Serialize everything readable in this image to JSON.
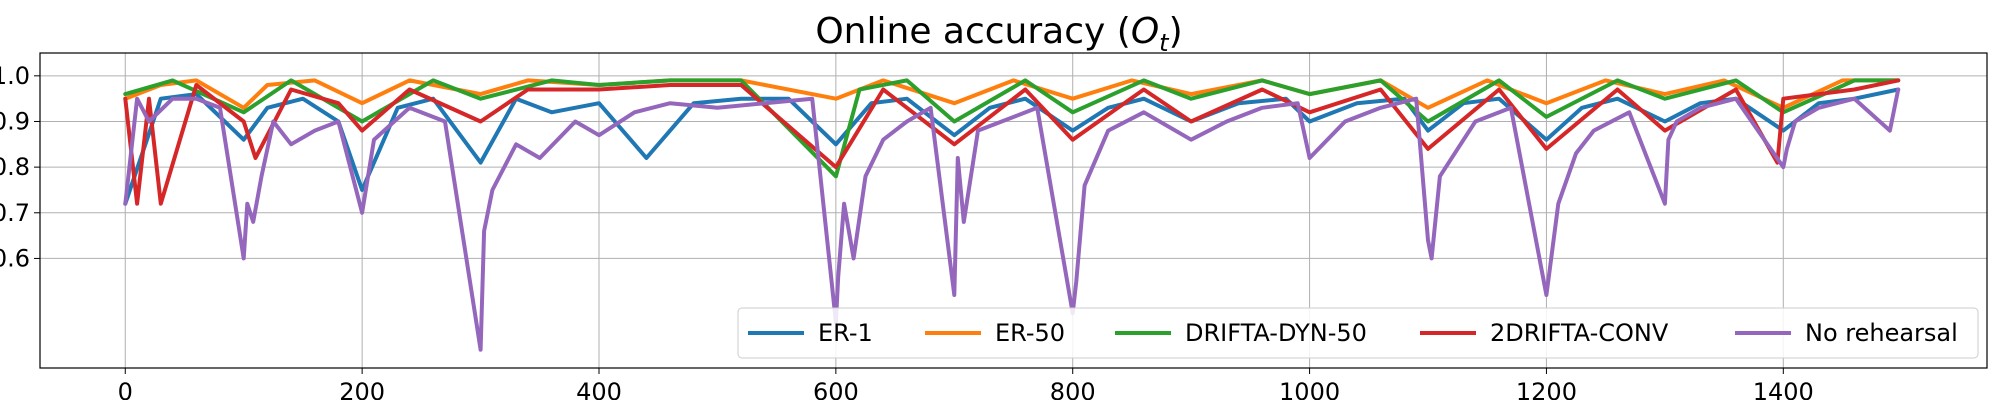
{
  "chart_data": {
    "type": "line",
    "title": "Online accuracy (",
    "title_math_main": "O",
    "title_math_sub": "t",
    "title_close": ")",
    "xlabel": "",
    "ylabel": "",
    "xlim": [
      -72,
      1572
    ],
    "ylim": [
      0.36,
      1.05
    ],
    "grid": true,
    "legend_position": "lower-right",
    "x_ticks": [
      0,
      200,
      400,
      600,
      800,
      1000,
      1200,
      1400
    ],
    "x_tick_labels": [
      "0",
      "200",
      "400",
      "600",
      "800",
      "1000",
      "1200",
      "1400"
    ],
    "y_ticks": [
      0.6,
      0.7,
      0.8,
      0.9,
      1.0
    ],
    "y_tick_labels": [
      "0.6",
      "0.7",
      "0.8",
      "0.9",
      "1.0"
    ],
    "series": [
      {
        "name": "ER-1",
        "color": "#1f77b4",
        "x": [
          0,
          30,
          60,
          100,
          120,
          150,
          180,
          200,
          230,
          260,
          300,
          330,
          360,
          400,
          440,
          480,
          520,
          560,
          600,
          630,
          660,
          700,
          730,
          760,
          800,
          830,
          860,
          900,
          940,
          980,
          1000,
          1040,
          1080,
          1100,
          1130,
          1160,
          1200,
          1230,
          1260,
          1300,
          1330,
          1360,
          1400,
          1430,
          1460,
          1497
        ],
        "y": [
          0.72,
          0.95,
          0.96,
          0.86,
          0.93,
          0.95,
          0.9,
          0.75,
          0.93,
          0.95,
          0.81,
          0.95,
          0.92,
          0.94,
          0.82,
          0.94,
          0.95,
          0.95,
          0.85,
          0.94,
          0.95,
          0.87,
          0.93,
          0.95,
          0.88,
          0.93,
          0.95,
          0.9,
          0.94,
          0.95,
          0.9,
          0.94,
          0.95,
          0.88,
          0.94,
          0.95,
          0.86,
          0.93,
          0.95,
          0.9,
          0.94,
          0.95,
          0.88,
          0.94,
          0.95,
          0.97
        ]
      },
      {
        "name": "ER-50",
        "color": "#ff7f0e",
        "x": [
          0,
          30,
          60,
          100,
          120,
          160,
          200,
          240,
          300,
          340,
          400,
          460,
          520,
          600,
          640,
          700,
          750,
          800,
          850,
          900,
          960,
          1000,
          1060,
          1100,
          1150,
          1200,
          1250,
          1300,
          1350,
          1400,
          1450,
          1497
        ],
        "y": [
          0.95,
          0.98,
          0.99,
          0.93,
          0.98,
          0.99,
          0.94,
          0.99,
          0.96,
          0.99,
          0.98,
          0.99,
          0.99,
          0.95,
          0.99,
          0.94,
          0.99,
          0.95,
          0.99,
          0.96,
          0.99,
          0.96,
          0.99,
          0.93,
          0.99,
          0.94,
          0.99,
          0.96,
          0.99,
          0.93,
          0.99,
          0.99
        ]
      },
      {
        "name": "DRIFTA-DYN-50",
        "color": "#2ca02c",
        "x": [
          0,
          40,
          100,
          140,
          200,
          260,
          300,
          360,
          400,
          460,
          520,
          600,
          620,
          660,
          700,
          760,
          800,
          860,
          900,
          960,
          1000,
          1060,
          1100,
          1160,
          1200,
          1260,
          1300,
          1360,
          1400,
          1460,
          1497
        ],
        "y": [
          0.96,
          0.99,
          0.92,
          0.99,
          0.9,
          0.99,
          0.95,
          0.99,
          0.98,
          0.99,
          0.99,
          0.78,
          0.97,
          0.99,
          0.9,
          0.99,
          0.92,
          0.99,
          0.95,
          0.99,
          0.96,
          0.99,
          0.9,
          0.99,
          0.91,
          0.99,
          0.95,
          0.99,
          0.92,
          0.99,
          0.99
        ]
      },
      {
        "name": "2DRIFTA-CONV",
        "color": "#d62728",
        "x": [
          0,
          10,
          20,
          30,
          60,
          100,
          110,
          140,
          180,
          200,
          240,
          300,
          340,
          400,
          460,
          520,
          600,
          640,
          700,
          760,
          800,
          860,
          900,
          960,
          1000,
          1060,
          1100,
          1160,
          1200,
          1260,
          1300,
          1360,
          1395,
          1400,
          1460,
          1497
        ],
        "y": [
          0.95,
          0.72,
          0.95,
          0.72,
          0.98,
          0.9,
          0.82,
          0.97,
          0.94,
          0.88,
          0.97,
          0.9,
          0.97,
          0.97,
          0.98,
          0.98,
          0.8,
          0.97,
          0.85,
          0.97,
          0.86,
          0.97,
          0.9,
          0.97,
          0.92,
          0.97,
          0.84,
          0.97,
          0.84,
          0.97,
          0.88,
          0.97,
          0.81,
          0.95,
          0.97,
          0.99
        ]
      },
      {
        "name": "No rehearsal",
        "color": "#9467bd",
        "x": [
          0,
          10,
          20,
          40,
          60,
          80,
          100,
          103,
          108,
          115,
          125,
          140,
          160,
          180,
          200,
          210,
          240,
          270,
          300,
          303,
          310,
          330,
          350,
          380,
          400,
          430,
          460,
          500,
          540,
          580,
          600,
          602,
          607,
          615,
          625,
          640,
          660,
          680,
          700,
          703,
          708,
          720,
          740,
          770,
          800,
          803,
          810,
          830,
          860,
          900,
          930,
          960,
          990,
          1000,
          1030,
          1060,
          1090,
          1100,
          1103,
          1110,
          1125,
          1140,
          1170,
          1200,
          1203,
          1210,
          1225,
          1240,
          1270,
          1300,
          1303,
          1310,
          1330,
          1360,
          1400,
          1403,
          1410,
          1430,
          1460,
          1490,
          1497
        ],
        "y": [
          0.72,
          0.95,
          0.9,
          0.95,
          0.95,
          0.93,
          0.6,
          0.72,
          0.68,
          0.78,
          0.9,
          0.85,
          0.88,
          0.9,
          0.7,
          0.86,
          0.93,
          0.9,
          0.4,
          0.66,
          0.75,
          0.85,
          0.82,
          0.9,
          0.87,
          0.92,
          0.94,
          0.93,
          0.94,
          0.95,
          0.46,
          0.56,
          0.72,
          0.6,
          0.78,
          0.86,
          0.9,
          0.93,
          0.52,
          0.82,
          0.68,
          0.88,
          0.9,
          0.93,
          0.48,
          0.55,
          0.76,
          0.88,
          0.92,
          0.86,
          0.9,
          0.93,
          0.94,
          0.82,
          0.9,
          0.93,
          0.95,
          0.64,
          0.6,
          0.78,
          0.84,
          0.9,
          0.93,
          0.52,
          0.58,
          0.72,
          0.83,
          0.88,
          0.92,
          0.72,
          0.86,
          0.9,
          0.93,
          0.95,
          0.8,
          0.84,
          0.9,
          0.93,
          0.95,
          0.88,
          0.97
        ]
      }
    ]
  }
}
